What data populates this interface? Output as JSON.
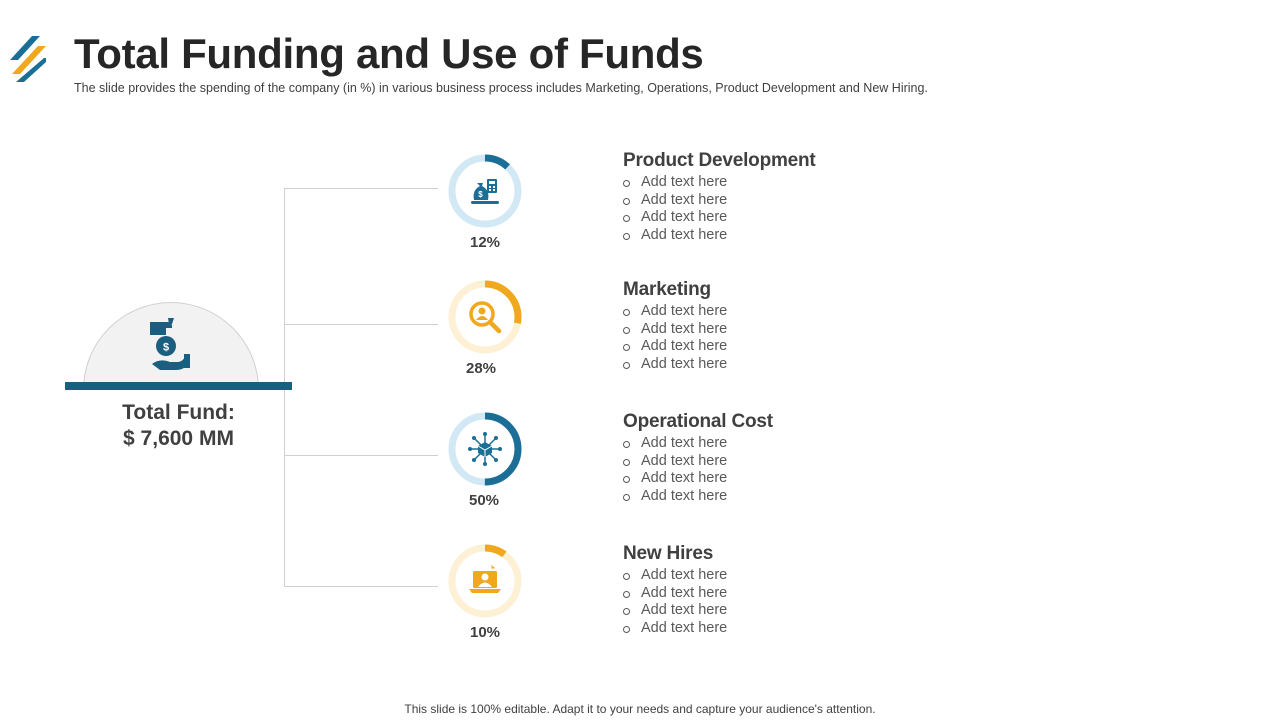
{
  "header": {
    "title": "Total Funding and Use of Funds",
    "subtitle": "The slide provides  the spending of the company (in %) in various  business process includes Marketing, Operations, Product Development  and New Hiring."
  },
  "total_fund": {
    "label": "Total Fund:",
    "value": "$ 7,600 MM",
    "icon": "hand-money-icon"
  },
  "categories": [
    {
      "title": "Product Development",
      "percent_label": "12%",
      "percent": 12,
      "icon": "money-bag-calculator-icon",
      "color": "#1b6f96",
      "track_color": "#d2e9f5",
      "bullets": [
        "Add text here",
        "Add text here",
        "Add text here",
        "Add text here"
      ]
    },
    {
      "title": "Marketing",
      "percent_label": "28%",
      "percent": 28,
      "icon": "magnifier-person-icon",
      "color": "#f0a81c",
      "track_color": "#fdf0d5",
      "bullets": [
        "Add text here",
        "Add text here",
        "Add text here",
        "Add text here"
      ]
    },
    {
      "title": "Operational Cost",
      "percent_label": "50%",
      "percent": 50,
      "icon": "network-hub-icon",
      "color": "#1b6f96",
      "track_color": "#d2e9f5",
      "bullets": [
        "Add text here",
        "Add text here",
        "Add text here",
        "Add text here"
      ]
    },
    {
      "title": "New Hires",
      "percent_label": "10%",
      "percent": 10,
      "icon": "hiring-laptop-icon",
      "color": "#f0a81c",
      "track_color": "#fdf0d5",
      "bullets": [
        "Add text here",
        "Add text here",
        "Add text here",
        "Add text here"
      ]
    }
  ],
  "footer": "This slide is 100% editable. Adapt it to your needs and capture your audience's attention.",
  "colors": {
    "blue": "#1b6f96",
    "dark_blue": "#1b5e80",
    "orange": "#f0a81c"
  }
}
